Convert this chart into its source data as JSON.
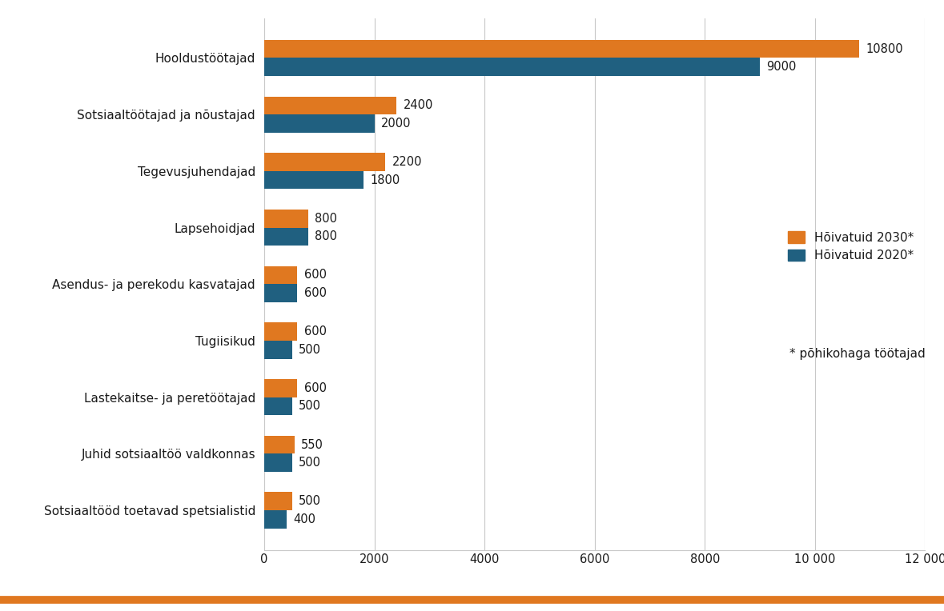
{
  "categories": [
    "Sotsiaaltööd toetavad spetsialistid",
    "Juhid sotsiaaltöö valdkonnas",
    "Lastekaitse- ja peretöötajad",
    "Tugiisikud",
    "Asendus- ja perekodu kasvatajad",
    "Lapsehoidjad",
    "Tegevusjuhendajad",
    "Sotsiaaltöötajad ja nõustajad",
    "Hooldustöötajad"
  ],
  "values_2030": [
    500,
    550,
    600,
    600,
    600,
    800,
    2200,
    2400,
    10800
  ],
  "values_2020": [
    400,
    500,
    500,
    500,
    600,
    800,
    1800,
    2000,
    9000
  ],
  "color_2030": "#E07820",
  "color_2020": "#206080",
  "legend_2030": "Hõivatuid 2030*",
  "legend_2020": "Hõivatuid 2020*",
  "footnote": "* põhikohaga töötajad",
  "xlim": [
    0,
    12000
  ],
  "xticks": [
    0,
    2000,
    4000,
    6000,
    8000,
    10000,
    12000
  ],
  "xtick_labels": [
    "0",
    "2000",
    "4000",
    "6000",
    "8000",
    "10 000",
    "12 000"
  ],
  "bar_height": 0.32,
  "background_color": "#ffffff",
  "grid_color": "#c8c8c8",
  "bottom_line_color": "#E07820",
  "label_fontsize": 11,
  "tick_fontsize": 10.5,
  "legend_fontsize": 11,
  "value_label_fontsize": 10.5
}
